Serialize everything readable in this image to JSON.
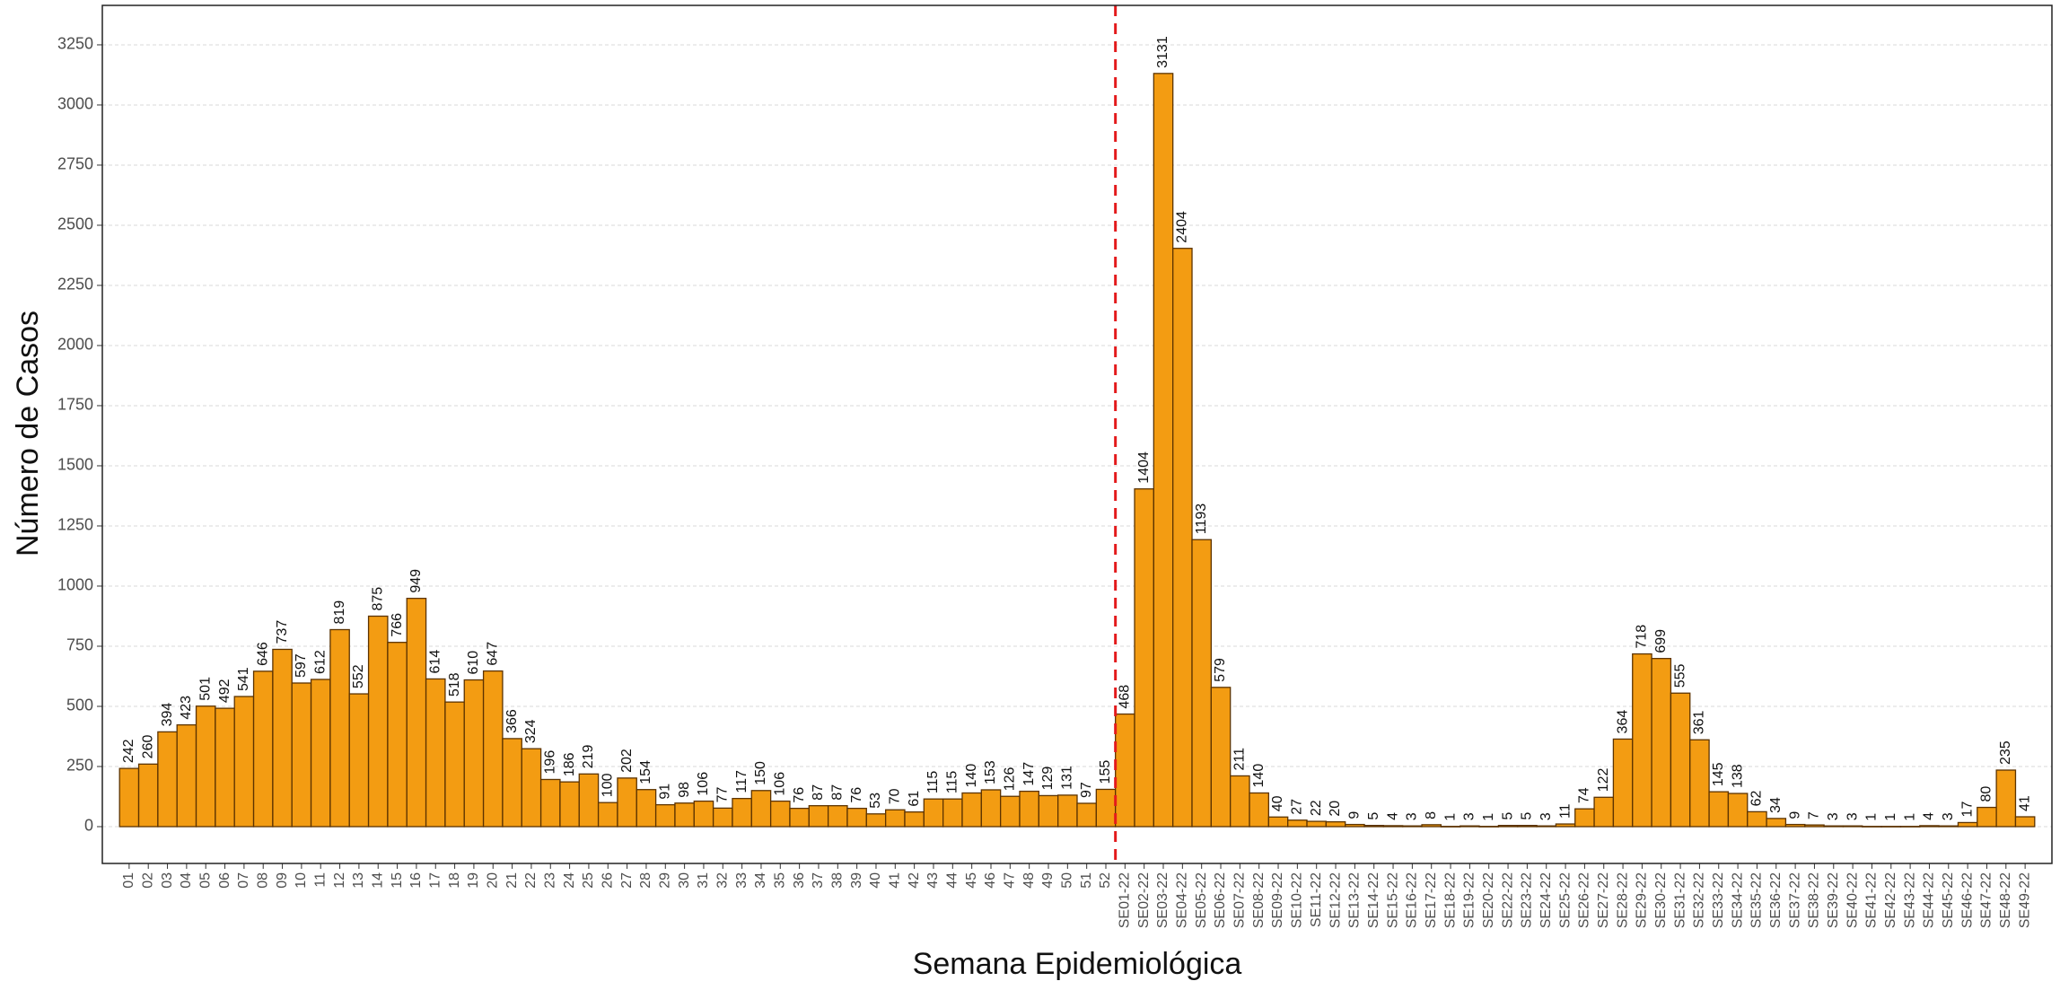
{
  "chart_data": {
    "type": "bar",
    "x_label": "Semana Epidemiológica",
    "y_label": "Número de Casos",
    "categories": [
      "01",
      "02",
      "03",
      "04",
      "05",
      "06",
      "07",
      "08",
      "09",
      "10",
      "11",
      "12",
      "13",
      "14",
      "15",
      "16",
      "17",
      "18",
      "19",
      "20",
      "21",
      "22",
      "23",
      "24",
      "25",
      "26",
      "27",
      "28",
      "29",
      "30",
      "31",
      "32",
      "33",
      "34",
      "35",
      "36",
      "37",
      "38",
      "39",
      "40",
      "41",
      "42",
      "43",
      "44",
      "45",
      "46",
      "47",
      "48",
      "49",
      "50",
      "51",
      "52",
      "SE01-22",
      "SE02-22",
      "SE03-22",
      "SE04-22",
      "SE05-22",
      "SE06-22",
      "SE07-22",
      "SE08-22",
      "SE09-22",
      "SE10-22",
      "SE11-22",
      "SE12-22",
      "SE13-22",
      "SE14-22",
      "SE15-22",
      "SE16-22",
      "SE17-22",
      "SE18-22",
      "SE19-22",
      "SE20-22",
      "SE22-22",
      "SE23-22",
      "SE24-22",
      "SE25-22",
      "SE26-22",
      "SE27-22",
      "SE28-22",
      "SE29-22",
      "SE30-22",
      "SE31-22",
      "SE32-22",
      "SE33-22",
      "SE34-22",
      "SE35-22",
      "SE36-22",
      "SE37-22",
      "SE38-22",
      "SE39-22",
      "SE40-22",
      "SE41-22",
      "SE42-22",
      "SE43-22",
      "SE44-22",
      "SE45-22",
      "SE46-22",
      "SE47-22",
      "SE48-22",
      "SE49-22"
    ],
    "values": [
      242,
      260,
      394,
      423,
      501,
      492,
      541,
      646,
      737,
      597,
      612,
      819,
      552,
      875,
      766,
      949,
      614,
      518,
      610,
      647,
      366,
      324,
      196,
      186,
      219,
      100,
      202,
      154,
      91,
      98,
      106,
      77,
      117,
      150,
      106,
      76,
      87,
      87,
      76,
      53,
      70,
      61,
      115,
      115,
      140,
      153,
      126,
      147,
      129,
      131,
      97,
      155,
      468,
      1404,
      3131,
      2404,
      1193,
      579,
      211,
      140,
      40,
      27,
      22,
      20,
      9,
      5,
      4,
      3,
      8,
      1,
      3,
      1,
      5,
      5,
      3,
      11,
      74,
      122,
      364,
      718,
      699,
      555,
      361,
      145,
      138,
      62,
      34,
      9,
      7,
      3,
      3,
      1,
      1,
      1,
      4,
      3,
      17,
      80,
      235,
      41
    ],
    "color": "#f39c12",
    "ylim": [
      -153,
      3414
    ],
    "yticks": [
      0,
      250,
      500,
      750,
      1000,
      1250,
      1500,
      1750,
      2000,
      2250,
      2500,
      2750,
      3000,
      3250
    ],
    "grid": true
  }
}
